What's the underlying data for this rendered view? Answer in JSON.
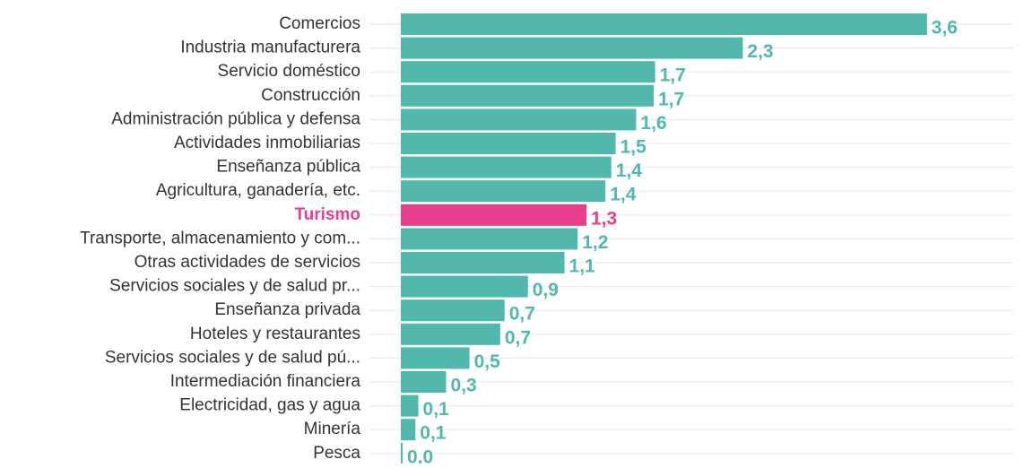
{
  "chart_data": {
    "type": "hbar",
    "categories": [
      "Comercios",
      "Industria manufacturera",
      "Servicio doméstico",
      "Construcción",
      "Administración pública y defensa",
      "Actividades inmobiliarias",
      "Enseñanza pública",
      "Agricultura, ganadería, etc.",
      "Turismo",
      "Transporte, almacenamiento y com...",
      "Otras actividades de servicios",
      "Servicios sociales y de salud pr...",
      "Enseñanza privada",
      "Hoteles y restaurantes",
      "Servicios sociales y de salud pú...",
      "Intermediación financiera",
      "Electricidad, gas y agua",
      "Minería",
      "Pesca"
    ],
    "values": [
      3.6,
      2.34,
      1.74,
      1.73,
      1.61,
      1.47,
      1.44,
      1.4,
      1.27,
      1.21,
      1.12,
      0.87,
      0.71,
      0.68,
      0.47,
      0.31,
      0.12,
      0.1,
      0.01
    ],
    "value_labels": [
      "3,6",
      "2,3",
      "1,7",
      "1,7",
      "1,6",
      "1,5",
      "1,4",
      "1,4",
      "1,3",
      "1,2",
      "1,1",
      "0,9",
      "0,7",
      "0,7",
      "0,5",
      "0,3",
      "0,1",
      "0,1",
      "0,0"
    ],
    "color": "#52b8ad",
    "colors": [
      "#52b8ad",
      "#52b8ad",
      "#52b8ad",
      "#52b8ad",
      "#52b8ad",
      "#52b8ad",
      "#52b8ad",
      "#52b8ad",
      "#e83e8c",
      "#52b8ad",
      "#52b8ad",
      "#52b8ad",
      "#52b8ad",
      "#52b8ad",
      "#52b8ad",
      "#52b8ad",
      "#52b8ad",
      "#52b8ad",
      "#52b8ad"
    ],
    "xlim": [
      0,
      4
    ],
    "grid": true
  }
}
